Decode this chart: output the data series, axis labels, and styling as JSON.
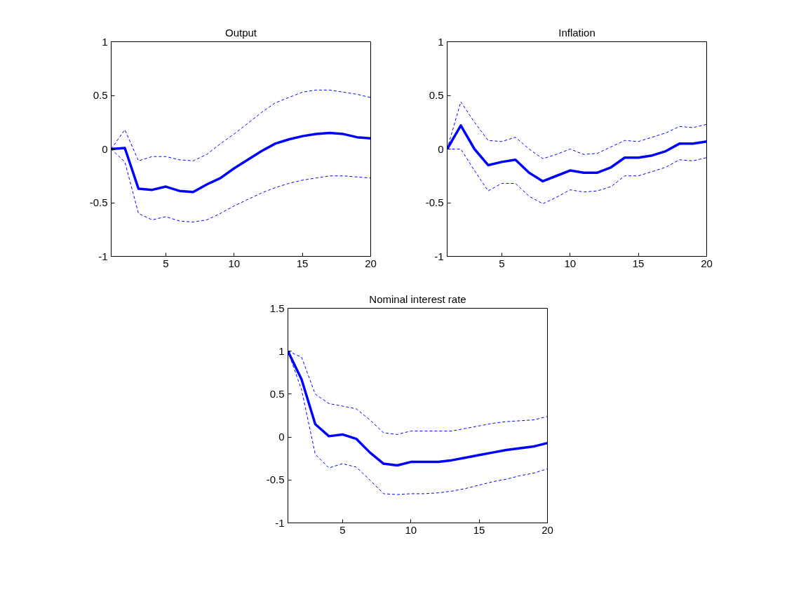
{
  "chart_data": [
    {
      "type": "line",
      "title": "Output",
      "x": [
        1,
        2,
        3,
        4,
        5,
        6,
        7,
        8,
        9,
        10,
        11,
        12,
        13,
        14,
        15,
        16,
        17,
        18,
        19,
        20
      ],
      "xlim": [
        1,
        20
      ],
      "xticks": [
        5,
        10,
        15,
        20
      ],
      "ylim": [
        -1,
        1
      ],
      "yticks": [
        -1,
        -0.5,
        0,
        0.5,
        1
      ],
      "grid": false,
      "series": [
        {
          "color": "#0000ff",
          "line_style": "solid",
          "values": [
            0,
            0.01,
            -0.37,
            -0.38,
            -0.35,
            -0.39,
            -0.4,
            -0.33,
            -0.27,
            -0.18,
            -0.1,
            -0.02,
            0.05,
            0.09,
            0.12,
            0.14,
            0.15,
            0.14,
            0.11,
            0.1
          ]
        },
        {
          "color": "#0000ff",
          "line_style": "dashed",
          "values": [
            0,
            0.18,
            -0.11,
            -0.07,
            -0.07,
            -0.1,
            -0.11,
            -0.05,
            0.05,
            0.14,
            0.24,
            0.34,
            0.43,
            0.48,
            0.53,
            0.55,
            0.55,
            0.53,
            0.51,
            0.48
          ]
        },
        {
          "color": "#0000ff",
          "line_style": "dashed",
          "values": [
            0,
            -0.12,
            -0.6,
            -0.66,
            -0.63,
            -0.67,
            -0.68,
            -0.66,
            -0.6,
            -0.53,
            -0.47,
            -0.41,
            -0.36,
            -0.32,
            -0.29,
            -0.27,
            -0.25,
            -0.25,
            -0.26,
            -0.27
          ]
        }
      ]
    },
    {
      "type": "line",
      "title": "Inflation",
      "x": [
        1,
        2,
        3,
        4,
        5,
        6,
        7,
        8,
        9,
        10,
        11,
        12,
        13,
        14,
        15,
        16,
        17,
        18,
        19,
        20
      ],
      "xlim": [
        1,
        20
      ],
      "xticks": [
        5,
        10,
        15,
        20
      ],
      "ylim": [
        -1,
        1
      ],
      "yticks": [
        -1,
        -0.5,
        0,
        0.5,
        1
      ],
      "grid": false,
      "series": [
        {
          "color": "#0000ff",
          "line_style": "solid",
          "values": [
            0,
            0.22,
            0.0,
            -0.15,
            -0.12,
            -0.1,
            -0.22,
            -0.3,
            -0.25,
            -0.2,
            -0.22,
            -0.22,
            -0.17,
            -0.08,
            -0.08,
            -0.06,
            -0.02,
            0.05,
            0.05,
            0.07
          ]
        },
        {
          "color": "#0000ff",
          "line_style": "dashed",
          "values": [
            0,
            0.44,
            0.25,
            0.08,
            0.07,
            0.11,
            0.0,
            -0.09,
            -0.05,
            0.0,
            -0.05,
            -0.04,
            0.02,
            0.08,
            0.07,
            0.11,
            0.15,
            0.21,
            0.2,
            0.23
          ]
        },
        {
          "color": "#0000ff",
          "line_style": "dashed",
          "values": [
            0,
            0.0,
            -0.2,
            -0.39,
            -0.32,
            -0.32,
            -0.44,
            -0.51,
            -0.45,
            -0.38,
            -0.4,
            -0.39,
            -0.35,
            -0.25,
            -0.25,
            -0.21,
            -0.17,
            -0.1,
            -0.11,
            -0.08
          ]
        }
      ]
    },
    {
      "type": "line",
      "title": "Nominal interest rate",
      "x": [
        1,
        2,
        3,
        4,
        5,
        6,
        7,
        8,
        9,
        10,
        11,
        12,
        13,
        14,
        15,
        16,
        17,
        18,
        19,
        20
      ],
      "xlim": [
        1,
        20
      ],
      "xticks": [
        5,
        10,
        15,
        20
      ],
      "ylim": [
        -1,
        1.5
      ],
      "yticks": [
        -1,
        -0.5,
        0,
        0.5,
        1,
        1.5
      ],
      "grid": false,
      "series": [
        {
          "color": "#0000ff",
          "line_style": "solid",
          "values": [
            1,
            0.67,
            0.15,
            0.01,
            0.03,
            -0.02,
            -0.18,
            -0.31,
            -0.33,
            -0.29,
            -0.29,
            -0.29,
            -0.27,
            -0.24,
            -0.21,
            -0.18,
            -0.15,
            -0.13,
            -0.11,
            -0.07
          ]
        },
        {
          "color": "#0000ff",
          "line_style": "dashed",
          "values": [
            1,
            0.93,
            0.5,
            0.39,
            0.36,
            0.33,
            0.2,
            0.05,
            0.03,
            0.07,
            0.07,
            0.07,
            0.07,
            0.1,
            0.13,
            0.16,
            0.18,
            0.19,
            0.2,
            0.24
          ]
        },
        {
          "color": "#0000ff",
          "line_style": "dashed",
          "values": [
            1,
            0.55,
            -0.2,
            -0.36,
            -0.31,
            -0.35,
            -0.5,
            -0.66,
            -0.67,
            -0.66,
            -0.66,
            -0.65,
            -0.63,
            -0.6,
            -0.56,
            -0.52,
            -0.49,
            -0.45,
            -0.42,
            -0.37
          ]
        }
      ]
    }
  ]
}
